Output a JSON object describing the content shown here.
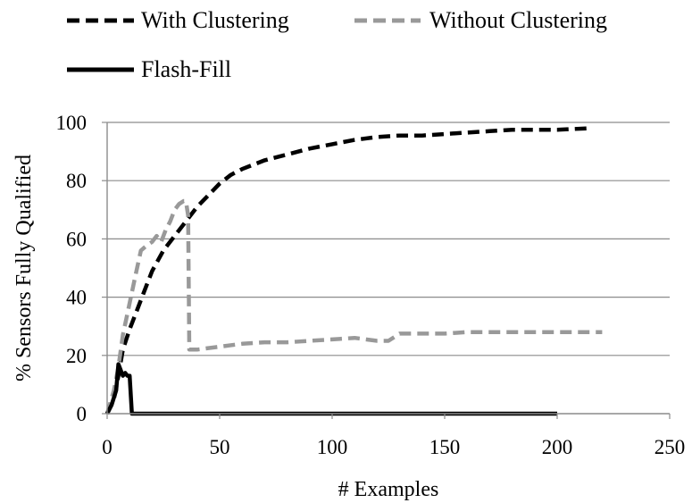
{
  "chart_data": {
    "type": "line",
    "title": "",
    "xlabel": "# Examples",
    "ylabel": "% Sensors Fully Qualified",
    "xlim": [
      0,
      250
    ],
    "ylim": [
      0,
      100
    ],
    "xticks": [
      0,
      50,
      100,
      150,
      200,
      250
    ],
    "yticks": [
      0,
      20,
      40,
      60,
      80,
      100
    ],
    "grid": "horizontal",
    "legend_position": "top",
    "series": [
      {
        "name": "With Clustering",
        "style": "dashed",
        "color": "#000000",
        "x": [
          0,
          3,
          5,
          7,
          10,
          13,
          16,
          20,
          25,
          30,
          35,
          40,
          45,
          50,
          55,
          60,
          70,
          80,
          90,
          100,
          110,
          120,
          130,
          140,
          150,
          160,
          170,
          180,
          190,
          200,
          215
        ],
        "y": [
          0,
          5,
          13,
          22,
          29,
          35,
          41,
          49,
          56,
          61,
          66,
          71,
          75,
          79,
          82,
          84,
          87,
          89,
          91,
          92.5,
          94,
          95,
          95.5,
          95.5,
          96,
          96.5,
          97,
          97.5,
          97.5,
          97.5,
          98
        ]
      },
      {
        "name": "Without Clustering",
        "style": "dashed",
        "color": "#999999",
        "x": [
          0,
          3,
          5,
          7,
          10,
          13,
          15,
          18,
          20,
          22,
          24,
          26,
          28,
          30,
          32,
          34,
          35,
          36,
          36.5,
          40,
          50,
          60,
          70,
          80,
          90,
          100,
          110,
          120,
          125,
          130,
          140,
          150,
          160,
          170,
          180,
          190,
          200,
          220
        ],
        "y": [
          0,
          8,
          16,
          27,
          38,
          49,
          56,
          58,
          59,
          61,
          59,
          63,
          66,
          70,
          72,
          73,
          73,
          68,
          22,
          22,
          23,
          24,
          24.5,
          24.5,
          25,
          25.5,
          26,
          25,
          25,
          27.5,
          27.5,
          27.5,
          28,
          28,
          28,
          28,
          28,
          28
        ]
      },
      {
        "name": "Flash-Fill",
        "style": "solid",
        "color": "#000000",
        "x": [
          0,
          2,
          4,
          5,
          6,
          7,
          8,
          9,
          10,
          11,
          50,
          100,
          150,
          200
        ],
        "y": [
          0,
          3,
          8,
          17,
          15,
          13,
          14,
          13,
          13,
          0,
          0,
          0,
          0,
          0
        ]
      }
    ]
  }
}
